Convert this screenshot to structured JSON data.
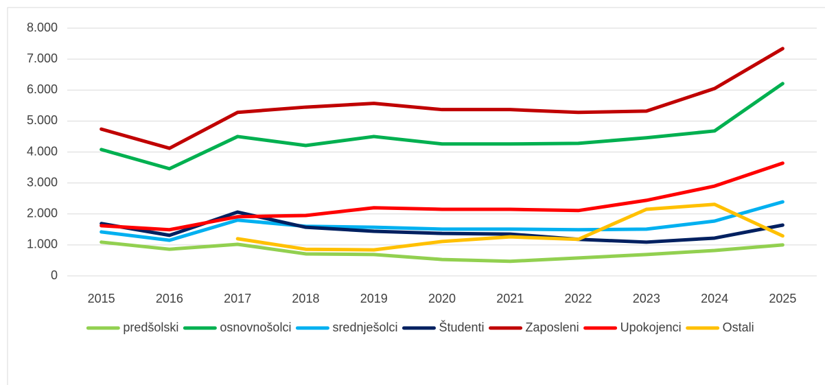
{
  "chart_data": {
    "type": "line",
    "categories": [
      "2015",
      "2016",
      "2017",
      "2018",
      "2019",
      "2020",
      "2021",
      "2022",
      "2023",
      "2024",
      "2025"
    ],
    "ylim": [
      0,
      8000
    ],
    "yticks": [
      0,
      {
        "value": 1000,
        "label": "1.000"
      },
      {
        "value": 2000,
        "label": "2.000"
      },
      {
        "value": 3000,
        "label": "3.000"
      },
      {
        "value": 4000,
        "label": "4.000"
      },
      {
        "value": 5000,
        "label": "5.000"
      },
      {
        "value": 6000,
        "label": "6.000"
      },
      {
        "value": 7000,
        "label": "7.000"
      },
      {
        "value": 8000,
        "label": "8.000"
      }
    ],
    "grid": true,
    "legend": "bottom",
    "series": [
      {
        "name": "predšolski",
        "color": "#92d050",
        "values": [
          1090,
          860,
          1020,
          710,
          690,
          530,
          470,
          580,
          690,
          820,
          1000
        ]
      },
      {
        "name": "osnovnošolci",
        "color": "#00b050",
        "values": [
          4080,
          3460,
          4500,
          4210,
          4500,
          4260,
          4260,
          4280,
          4460,
          4680,
          6210
        ]
      },
      {
        "name": "srednješolci",
        "color": "#00b0f0",
        "values": [
          1420,
          1150,
          1800,
          1600,
          1570,
          1510,
          1510,
          1490,
          1510,
          1770,
          2390
        ]
      },
      {
        "name": "Študenti",
        "color": "#002060",
        "values": [
          1690,
          1310,
          2060,
          1570,
          1440,
          1370,
          1350,
          1180,
          1090,
          1220,
          1640
        ]
      },
      {
        "name": "Zaposleni",
        "color": "#c00000",
        "values": [
          4740,
          4120,
          5280,
          5450,
          5570,
          5370,
          5370,
          5280,
          5320,
          6050,
          7340
        ]
      },
      {
        "name": "Upokojenci",
        "color": "#ff0000",
        "values": [
          1620,
          1490,
          1910,
          1950,
          2200,
          2150,
          2150,
          2110,
          2440,
          2900,
          3640
        ]
      },
      {
        "name": "Ostali",
        "color": "#ffc000",
        "values": [
          null,
          null,
          1200,
          860,
          840,
          1110,
          1260,
          1180,
          2150,
          2310,
          1290
        ]
      }
    ]
  }
}
